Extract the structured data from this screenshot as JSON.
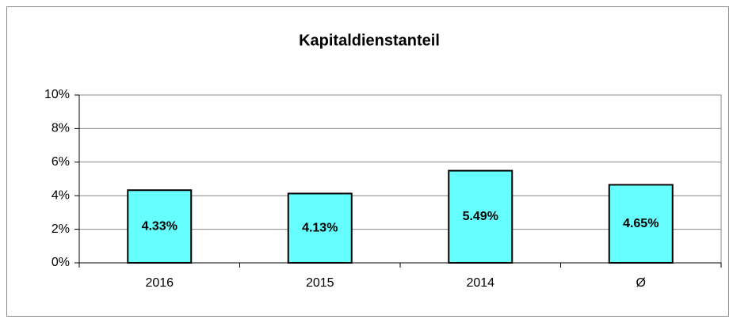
{
  "chart_data": {
    "type": "bar",
    "title": "Kapitaldienstanteil",
    "categories": [
      "2016",
      "2015",
      "2014",
      "Ø"
    ],
    "values": [
      4.33,
      4.13,
      5.49,
      4.65
    ],
    "value_labels": [
      "4.33%",
      "4.13%",
      "5.49%",
      "4.65%"
    ],
    "color": "#66ffff",
    "ylim": [
      0,
      10
    ],
    "yticks": [
      {
        "value": 0,
        "label": "0%"
      },
      {
        "value": 2,
        "label": "2%"
      },
      {
        "value": 4,
        "label": "4%"
      },
      {
        "value": 6,
        "label": "6%"
      },
      {
        "value": 8,
        "label": "8%"
      },
      {
        "value": 10,
        "label": "10%"
      }
    ],
    "grid": true
  }
}
